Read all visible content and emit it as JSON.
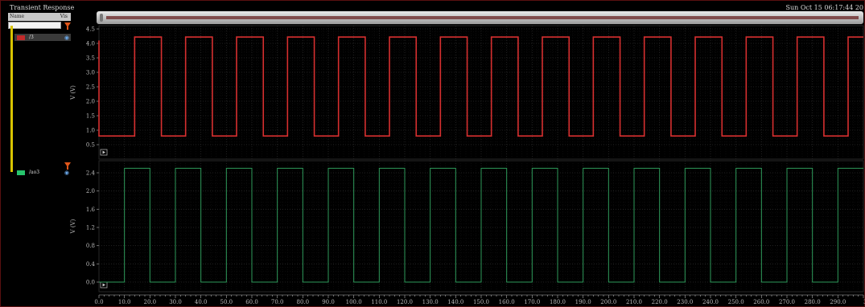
{
  "window": {
    "title": "Transient Response",
    "datetime": "Sun Oct 15 06:17:44 20"
  },
  "browser": {
    "col_name": "Name",
    "col_vis": "Vis",
    "signals": [
      {
        "name": "/3",
        "color": "#c22a2a"
      },
      {
        "name": "/ao3",
        "color": "#27c46c"
      }
    ]
  },
  "x_axis": {
    "ticks": [
      "0.0",
      "10.0",
      "20.0",
      "30.0",
      "40.0",
      "50.0",
      "60.0",
      "70.0",
      "80.0",
      "90.0",
      "100.0",
      "110.0",
      "120.0",
      "130.0",
      "140.0",
      "150.0",
      "160.0",
      "170.0",
      "180.0",
      "190.0",
      "200.0",
      "210.0",
      "220.0",
      "230.0",
      "240.0",
      "250.0",
      "260.0",
      "270.0",
      "280.0",
      "290.0",
      "30"
    ]
  },
  "chart_data": [
    {
      "type": "line",
      "ylabel": "V (V)",
      "ylim": [
        0.5,
        4.5
      ],
      "y_ticks": [
        "4.5",
        "4.0",
        "3.5",
        "3.0",
        "2.5",
        "2.0",
        "1.5",
        "1.0",
        "0.5"
      ],
      "color": "#d62f2f",
      "grid": true,
      "series": [
        {
          "low": 0.8,
          "high": 4.22,
          "first_rise": 14.0,
          "period": 20.0,
          "high_time": 10.5,
          "initial": 4.1,
          "xlim": [
            0,
            300
          ]
        }
      ]
    },
    {
      "type": "line",
      "ylabel": "V (V)",
      "ylim": [
        -0.1,
        2.7
      ],
      "y_ticks": [
        "2.4",
        "2.0",
        "1.6",
        "1.2",
        "0.8",
        "0.4",
        "0.0"
      ],
      "color": "#2e9a5a",
      "grid": true,
      "series": [
        {
          "low": 0.0,
          "high": 2.5,
          "first_rise": 10.0,
          "period": 20.0,
          "high_time": 10.0,
          "initial": 0.0,
          "xlim": [
            0,
            300
          ]
        }
      ]
    }
  ]
}
